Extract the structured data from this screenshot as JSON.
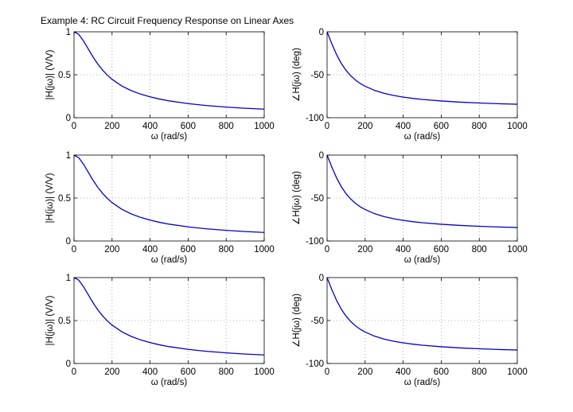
{
  "figure": {
    "title": "Example 4:  RC Circuit Frequency Response on Linear Axes"
  },
  "chart_data": [
    {
      "type": "line",
      "xlabel": "ω (rad/s)",
      "ylabel": "|H(jω)| (V/V)",
      "xlim": [
        0,
        1000
      ],
      "ylim": [
        0,
        1
      ],
      "xticks": [
        0,
        200,
        400,
        600,
        800,
        1000
      ],
      "yticks": [
        0,
        0.5,
        1
      ],
      "grid": true,
      "series": [
        {
          "color": "#0000cc",
          "x": [
            0,
            25,
            50,
            75,
            100,
            125,
            150,
            175,
            200,
            250,
            300,
            350,
            400,
            450,
            500,
            600,
            700,
            800,
            900,
            1000
          ],
          "y": [
            1.0,
            0.97,
            0.894,
            0.8,
            0.707,
            0.625,
            0.555,
            0.496,
            0.447,
            0.371,
            0.316,
            0.275,
            0.243,
            0.217,
            0.196,
            0.164,
            0.141,
            0.124,
            0.11,
            0.0995
          ]
        }
      ]
    },
    {
      "type": "line",
      "xlabel": "ω (rad/s)",
      "ylabel": "∠H(jω) (deg)",
      "xlim": [
        0,
        1000
      ],
      "ylim": [
        -100,
        0
      ],
      "xticks": [
        0,
        200,
        400,
        600,
        800,
        1000
      ],
      "yticks": [
        -100,
        -50,
        0
      ],
      "grid": true,
      "series": [
        {
          "color": "#0000cc",
          "x": [
            0,
            25,
            50,
            75,
            100,
            125,
            150,
            175,
            200,
            250,
            300,
            350,
            400,
            450,
            500,
            600,
            700,
            800,
            900,
            1000
          ],
          "y": [
            0,
            -14.0,
            -26.6,
            -36.9,
            -45.0,
            -51.3,
            -56.3,
            -60.3,
            -63.4,
            -68.2,
            -71.6,
            -74.1,
            -76.0,
            -77.5,
            -78.7,
            -80.5,
            -81.9,
            -82.9,
            -83.7,
            -84.3
          ]
        }
      ]
    },
    {
      "type": "line",
      "xlabel": "ω (rad/s)",
      "ylabel": "|H(jω)| (V/V)",
      "xlim": [
        0,
        1000
      ],
      "ylim": [
        0,
        1
      ],
      "xticks": [
        0,
        200,
        400,
        600,
        800,
        1000
      ],
      "yticks": [
        0,
        0.5,
        1
      ],
      "grid": true,
      "series": [
        {
          "color": "#0000cc",
          "x": [
            0,
            25,
            50,
            75,
            100,
            125,
            150,
            175,
            200,
            250,
            300,
            350,
            400,
            450,
            500,
            600,
            700,
            800,
            900,
            1000
          ],
          "y": [
            1.0,
            0.97,
            0.894,
            0.8,
            0.707,
            0.625,
            0.555,
            0.496,
            0.447,
            0.371,
            0.316,
            0.275,
            0.243,
            0.217,
            0.196,
            0.164,
            0.141,
            0.124,
            0.11,
            0.0995
          ]
        }
      ]
    },
    {
      "type": "line",
      "xlabel": "ω (rad/s)",
      "ylabel": "∠H(jω) (deg)",
      "xlim": [
        0,
        1000
      ],
      "ylim": [
        -100,
        0
      ],
      "xticks": [
        0,
        200,
        400,
        600,
        800,
        1000
      ],
      "yticks": [
        -100,
        -50,
        0
      ],
      "grid": true,
      "series": [
        {
          "color": "#0000cc",
          "x": [
            0,
            25,
            50,
            75,
            100,
            125,
            150,
            175,
            200,
            250,
            300,
            350,
            400,
            450,
            500,
            600,
            700,
            800,
            900,
            1000
          ],
          "y": [
            0,
            -14.0,
            -26.6,
            -36.9,
            -45.0,
            -51.3,
            -56.3,
            -60.3,
            -63.4,
            -68.2,
            -71.6,
            -74.1,
            -76.0,
            -77.5,
            -78.7,
            -80.5,
            -81.9,
            -82.9,
            -83.7,
            -84.3
          ]
        }
      ]
    },
    {
      "type": "line",
      "xlabel": "ω (rad/s)",
      "ylabel": "|H(jω)| (V/V)",
      "xlim": [
        0,
        1000
      ],
      "ylim": [
        0,
        1
      ],
      "xticks": [
        0,
        200,
        400,
        600,
        800,
        1000
      ],
      "yticks": [
        0,
        0.5,
        1
      ],
      "grid": true,
      "series": [
        {
          "color": "#0000cc",
          "x": [
            0,
            25,
            50,
            75,
            100,
            125,
            150,
            175,
            200,
            250,
            300,
            350,
            400,
            450,
            500,
            600,
            700,
            800,
            900,
            1000
          ],
          "y": [
            1.0,
            0.97,
            0.894,
            0.8,
            0.707,
            0.625,
            0.555,
            0.496,
            0.447,
            0.371,
            0.316,
            0.275,
            0.243,
            0.217,
            0.196,
            0.164,
            0.141,
            0.124,
            0.11,
            0.0995
          ]
        }
      ]
    },
    {
      "type": "line",
      "xlabel": "ω (rad/s)",
      "ylabel": "∠H(jω) (deg)",
      "xlim": [
        0,
        1000
      ],
      "ylim": [
        -100,
        0
      ],
      "xticks": [
        0,
        200,
        400,
        600,
        800,
        1000
      ],
      "yticks": [
        -100,
        -50,
        0
      ],
      "grid": true,
      "series": [
        {
          "color": "#0000cc",
          "x": [
            0,
            25,
            50,
            75,
            100,
            125,
            150,
            175,
            200,
            250,
            300,
            350,
            400,
            450,
            500,
            600,
            700,
            800,
            900,
            1000
          ],
          "y": [
            0,
            -14.0,
            -26.6,
            -36.9,
            -45.0,
            -51.3,
            -56.3,
            -60.3,
            -63.4,
            -68.2,
            -71.6,
            -74.1,
            -76.0,
            -77.5,
            -78.7,
            -80.5,
            -81.9,
            -82.9,
            -83.7,
            -84.3
          ]
        }
      ]
    }
  ]
}
